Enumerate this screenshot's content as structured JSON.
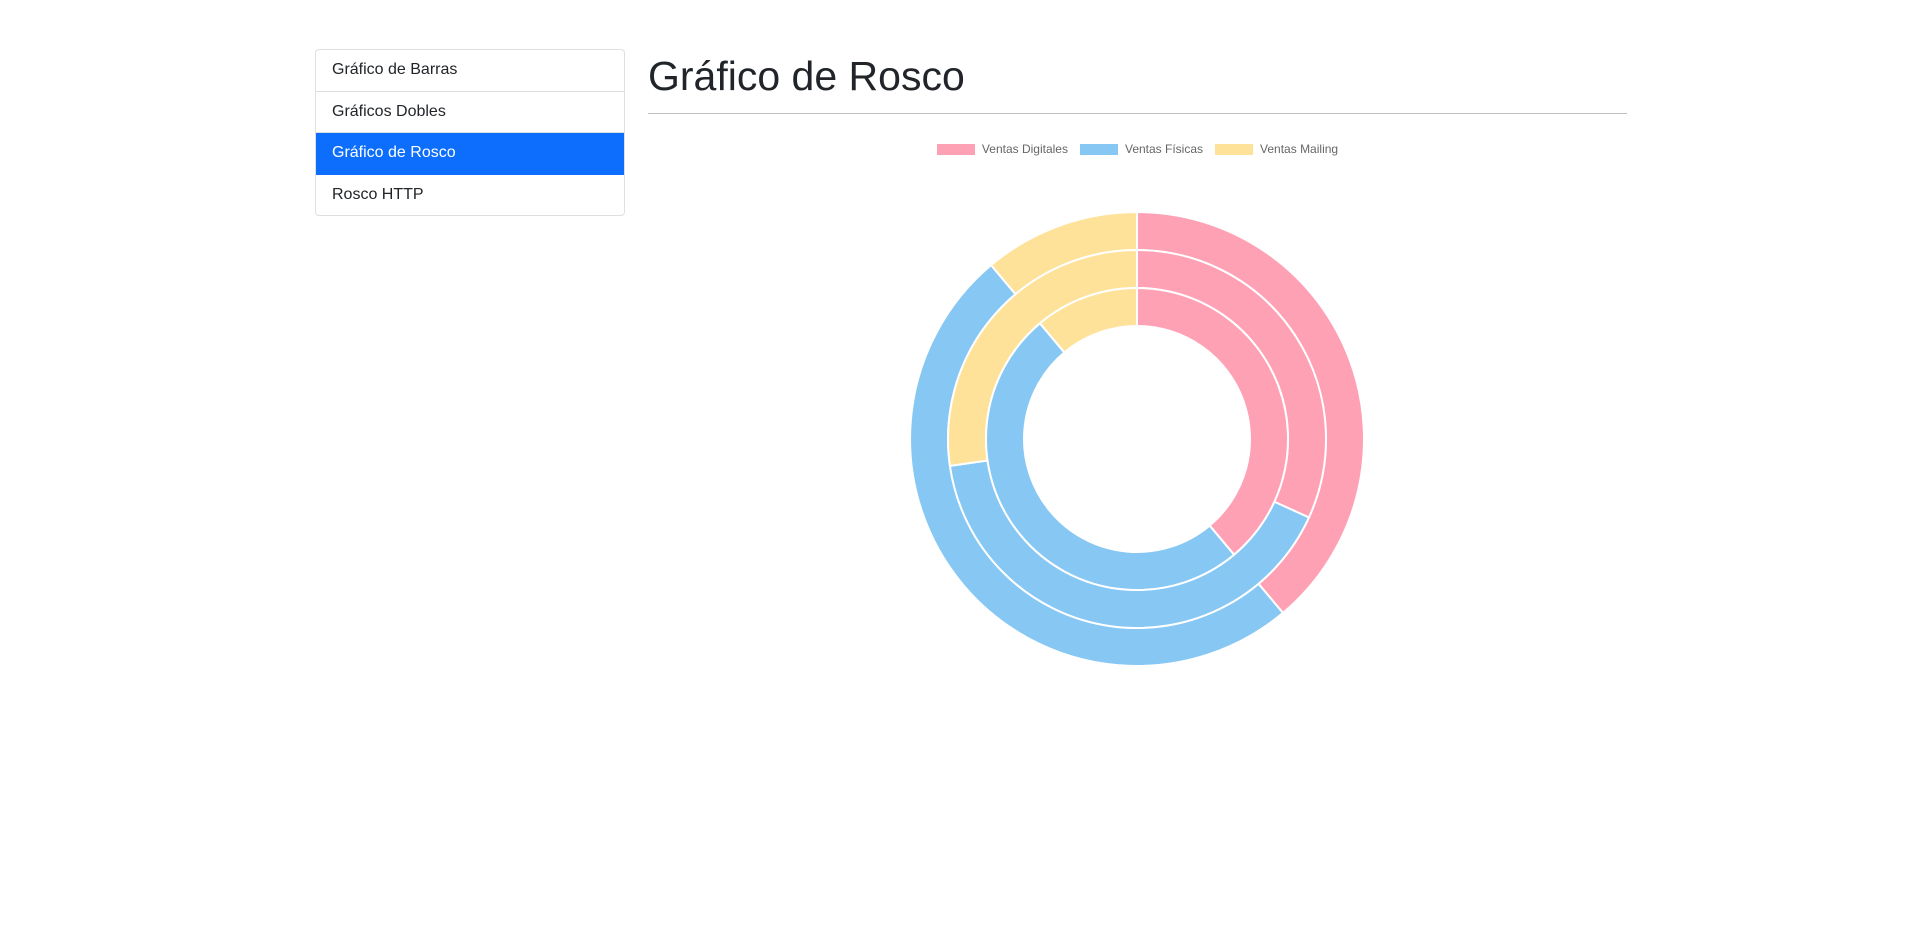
{
  "sidebar": {
    "items": [
      {
        "label": "Gráfico de Barras",
        "active": false
      },
      {
        "label": "Gráficos Dobles",
        "active": false
      },
      {
        "label": "Gráfico de Rosco",
        "active": true
      },
      {
        "label": "Rosco HTTP",
        "active": false
      }
    ]
  },
  "main": {
    "title": "Gráfico de Rosco"
  },
  "colors": {
    "accent": "#0d6efd"
  },
  "chart_data": {
    "type": "pie",
    "variant": "doughnut",
    "legend_position": "top",
    "categories": [
      "Ventas Digitales",
      "Ventas Físicas",
      "Ventas Mailing"
    ],
    "colors": [
      "#ffa1b5",
      "#86c7f3",
      "#ffe29a"
    ],
    "series": [
      {
        "values": [
          350,
          450,
          100
        ]
      },
      {
        "values": [
          350,
          450,
          300
        ]
      },
      {
        "values": [
          350,
          450,
          100
        ]
      }
    ]
  }
}
